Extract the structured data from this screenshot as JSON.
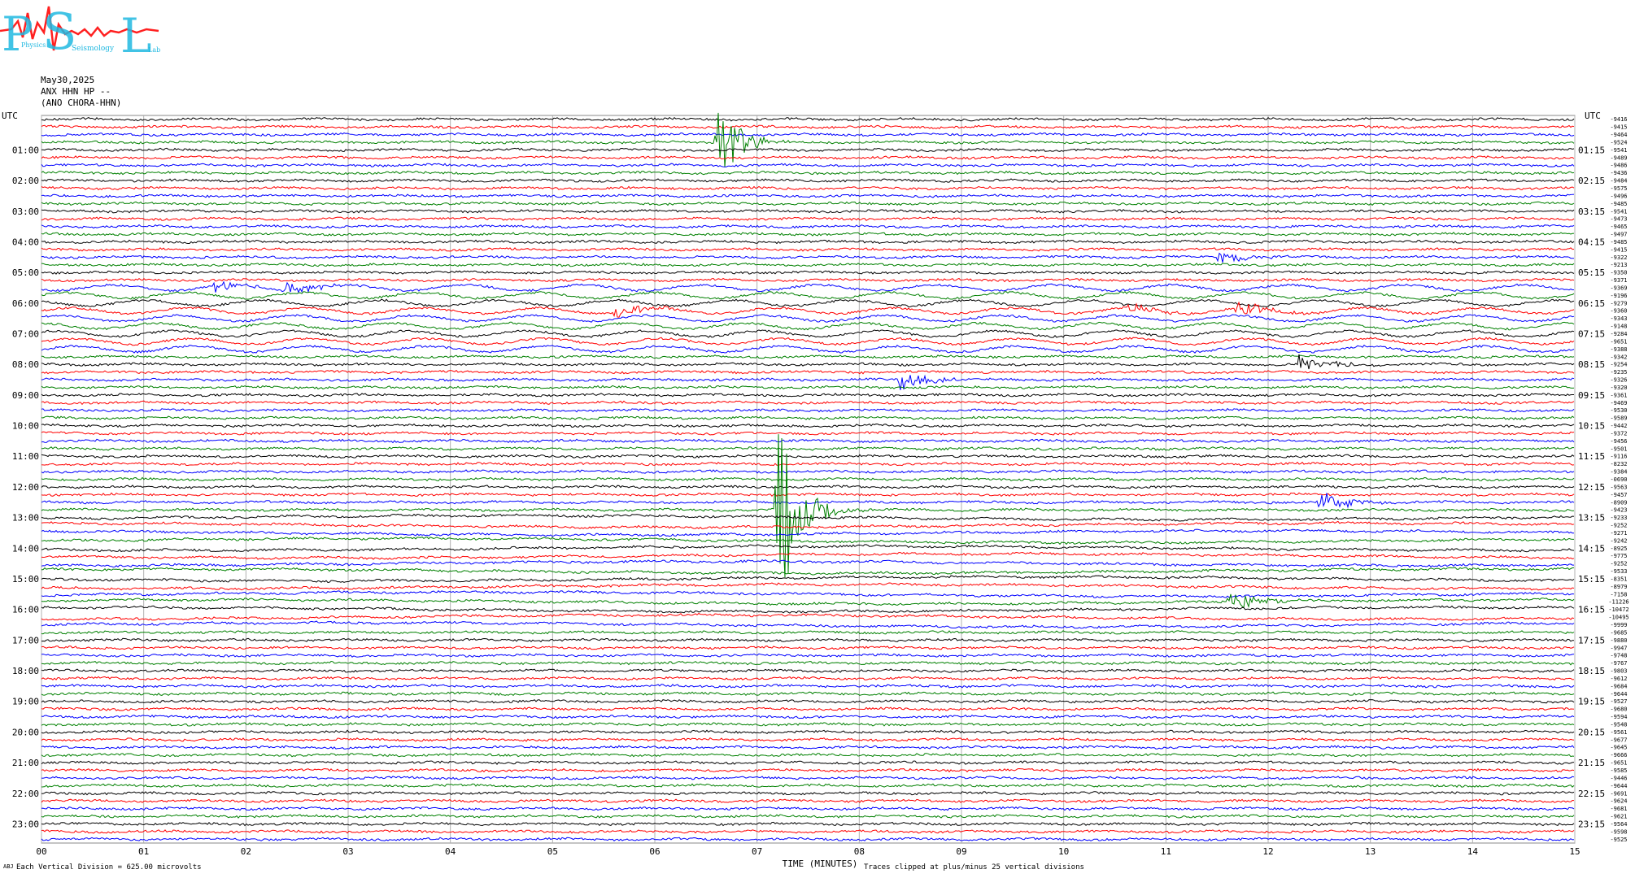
{
  "logo": {
    "letters": "PSL",
    "words": [
      "Physics",
      "Seismology",
      "Lab"
    ]
  },
  "header": {
    "date": "May30,2025",
    "channel": "ANX HHN HP --",
    "station": "(ANO CHORA-HHN)"
  },
  "left_axis_title": "UTC",
  "right_axis_title": "UTC",
  "left_hour_labels": [
    "01:00",
    "02:00",
    "03:00",
    "04:00",
    "05:00",
    "06:00",
    "07:00",
    "08:00",
    "09:00",
    "10:00",
    "11:00",
    "12:00",
    "13:00",
    "14:00",
    "15:00",
    "16:00",
    "17:00",
    "18:00",
    "19:00",
    "20:00",
    "21:00",
    "22:00",
    "23:00"
  ],
  "right_hour_labels": [
    "01:15",
    "02:15",
    "03:15",
    "04:15",
    "05:15",
    "06:15",
    "07:15",
    "08:15",
    "09:15",
    "10:15",
    "11:15",
    "12:15",
    "13:15",
    "14:15",
    "15:15",
    "16:15",
    "17:15",
    "18:15",
    "19:15",
    "20:15",
    "21:15",
    "22:15",
    "23:15"
  ],
  "trace_offsets": [
    "-9416",
    "-9415",
    "-9464",
    "-9524",
    "-9541",
    "-9489",
    "-9486",
    "-9436",
    "-9484",
    "-9575",
    "-9496",
    "-9485",
    "-9541",
    "-9473",
    "-9465",
    "-9497",
    "-9485",
    "-9415",
    "-9322",
    "-9213",
    "-9350",
    "-9371",
    "-9369",
    "-9196",
    "-9279",
    "-9360",
    "-9343",
    "-9148",
    "-9284",
    "-9651",
    "-9388",
    "-9342",
    "-9254",
    "-9235",
    "-9326",
    "-9320",
    "-9361",
    "-9469",
    "-9530",
    "-9589",
    "-9442",
    "-9372",
    "-9456",
    "-9501",
    "-9116",
    "-8232",
    "-9384",
    "-0690",
    "-9563",
    "-9457",
    "-8909",
    "-9423",
    "-9233",
    "-9252",
    "-9271",
    "-9242",
    "-8925",
    "-9775",
    "-9252",
    "-9533",
    "-8351",
    "-8979",
    "-7158",
    "-11226",
    "-10472",
    "-10495",
    "-9999",
    "-9685",
    "-9880",
    "-9947",
    "-9748",
    "-9767",
    "-9803",
    "-9612",
    "-9684",
    "-9644",
    "-9527",
    "-9680",
    "-9594",
    "-9548",
    "-9561",
    "-9677",
    "-9645",
    "-9666",
    "-9651",
    "-9585",
    "-9446",
    "-9644",
    "-9691",
    "-9624",
    "-9681",
    "-9621",
    "-9564",
    "-9598",
    "-9525"
  ],
  "x_tick_labels": [
    "00",
    "01",
    "02",
    "03",
    "04",
    "05",
    "06",
    "07",
    "08",
    "09",
    "10",
    "11",
    "12",
    "13",
    "14",
    "15"
  ],
  "x_axis_title": "TIME (MINUTES)",
  "footer": {
    "scale_note": "Each Vertical Division = 625.00 microvolts",
    "clip_note": "Traces clipped at plus/minus 25 vertical divisions",
    "corner_mark": "ABJ"
  },
  "colors": {
    "trace_cycle": [
      "#000000",
      "#ff0000",
      "#0000ff",
      "#008000"
    ],
    "grid": "#b0b0b0",
    "logo_cyan": "#20b8e0",
    "logo_red": "#ff2020"
  },
  "chart_data": {
    "type": "helicorder",
    "x_unit": "minutes",
    "x_range": [
      0,
      15
    ],
    "traces_per_hour": 4,
    "trace_count": 95,
    "trace_color_cycle": [
      "black",
      "red",
      "blue",
      "green"
    ],
    "start_utc": "00:00",
    "y_label": "UTC",
    "events": [
      {
        "utc": "00:45",
        "minute": 6.6,
        "color": "red",
        "amplitude_divisions": 12,
        "note": "large event"
      },
      {
        "utc": "12:45",
        "minute": 7.2,
        "color": "red",
        "amplitude_divisions": 25,
        "note": "largest event, clipped"
      },
      {
        "utc": "04:30",
        "minute": 11.5,
        "color": "blue",
        "amplitude_divisions": 2
      },
      {
        "utc": "05:30",
        "minute": 1.7,
        "color": "blue",
        "amplitude_divisions": 1.5
      },
      {
        "utc": "05:30",
        "minute": 2.4,
        "color": "blue",
        "amplitude_divisions": 2
      },
      {
        "utc": "06:15",
        "minute": 5.6,
        "color": "red",
        "amplitude_divisions": 2
      },
      {
        "utc": "06:15",
        "minute": 10.6,
        "color": "red",
        "amplitude_divisions": 1.5
      },
      {
        "utc": "06:15",
        "minute": 11.7,
        "color": "red",
        "amplitude_divisions": 2
      },
      {
        "utc": "08:30",
        "minute": 8.4,
        "color": "blue",
        "amplitude_divisions": 2.5
      },
      {
        "utc": "08:00",
        "minute": 12.3,
        "color": "black",
        "amplitude_divisions": 2
      },
      {
        "utc": "12:30",
        "minute": 12.5,
        "color": "blue",
        "amplitude_divisions": 3
      },
      {
        "utc": "15:45",
        "minute": 11.6,
        "color": "green",
        "amplitude_divisions": 3
      }
    ]
  }
}
